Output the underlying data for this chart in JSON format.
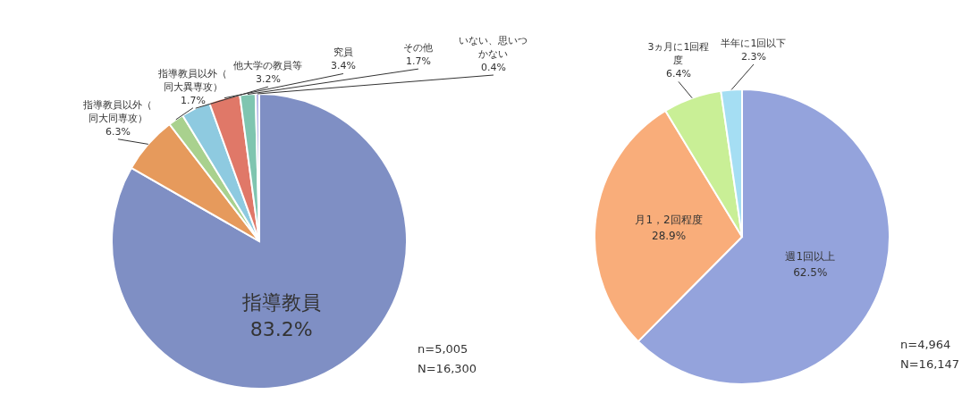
{
  "chart_data": [
    {
      "type": "pie",
      "categories": [
        "指導教員",
        "指導教員以外（同大同専攻）",
        "指導教員以外（同大異専攻）",
        "他大学の教員等",
        "究員",
        "その他",
        "いない、思いつかない"
      ],
      "values": [
        83.2,
        6.3,
        1.7,
        3.2,
        3.4,
        1.7,
        0.4
      ],
      "colors": [
        "#7f8fc4",
        "#e69a5c",
        "#a9d18e",
        "#8ecae0",
        "#e07868",
        "#7fc5b0",
        "#b8b8e8"
      ],
      "value_labels": [
        "83.2%",
        "6.3%",
        "1.7%",
        "3.2%",
        "3.4%",
        "1.7%",
        "0.4%"
      ],
      "annotations": [
        "n=5,005",
        "N=16,300"
      ]
    },
    {
      "type": "pie",
      "categories": [
        "週1回以上",
        "月1，2回程度",
        "3ヵ月に1回程度",
        "半年に1回以下"
      ],
      "values": [
        62.5,
        28.9,
        6.4,
        2.3
      ],
      "colors": [
        "#94a3dc",
        "#f9ad7a",
        "#c9ef96",
        "#a5def3"
      ],
      "value_labels": [
        "62.5%",
        "28.9%",
        "6.4%",
        "2.3%"
      ],
      "annotations": [
        "n=4,964",
        "N=16,147"
      ]
    }
  ]
}
